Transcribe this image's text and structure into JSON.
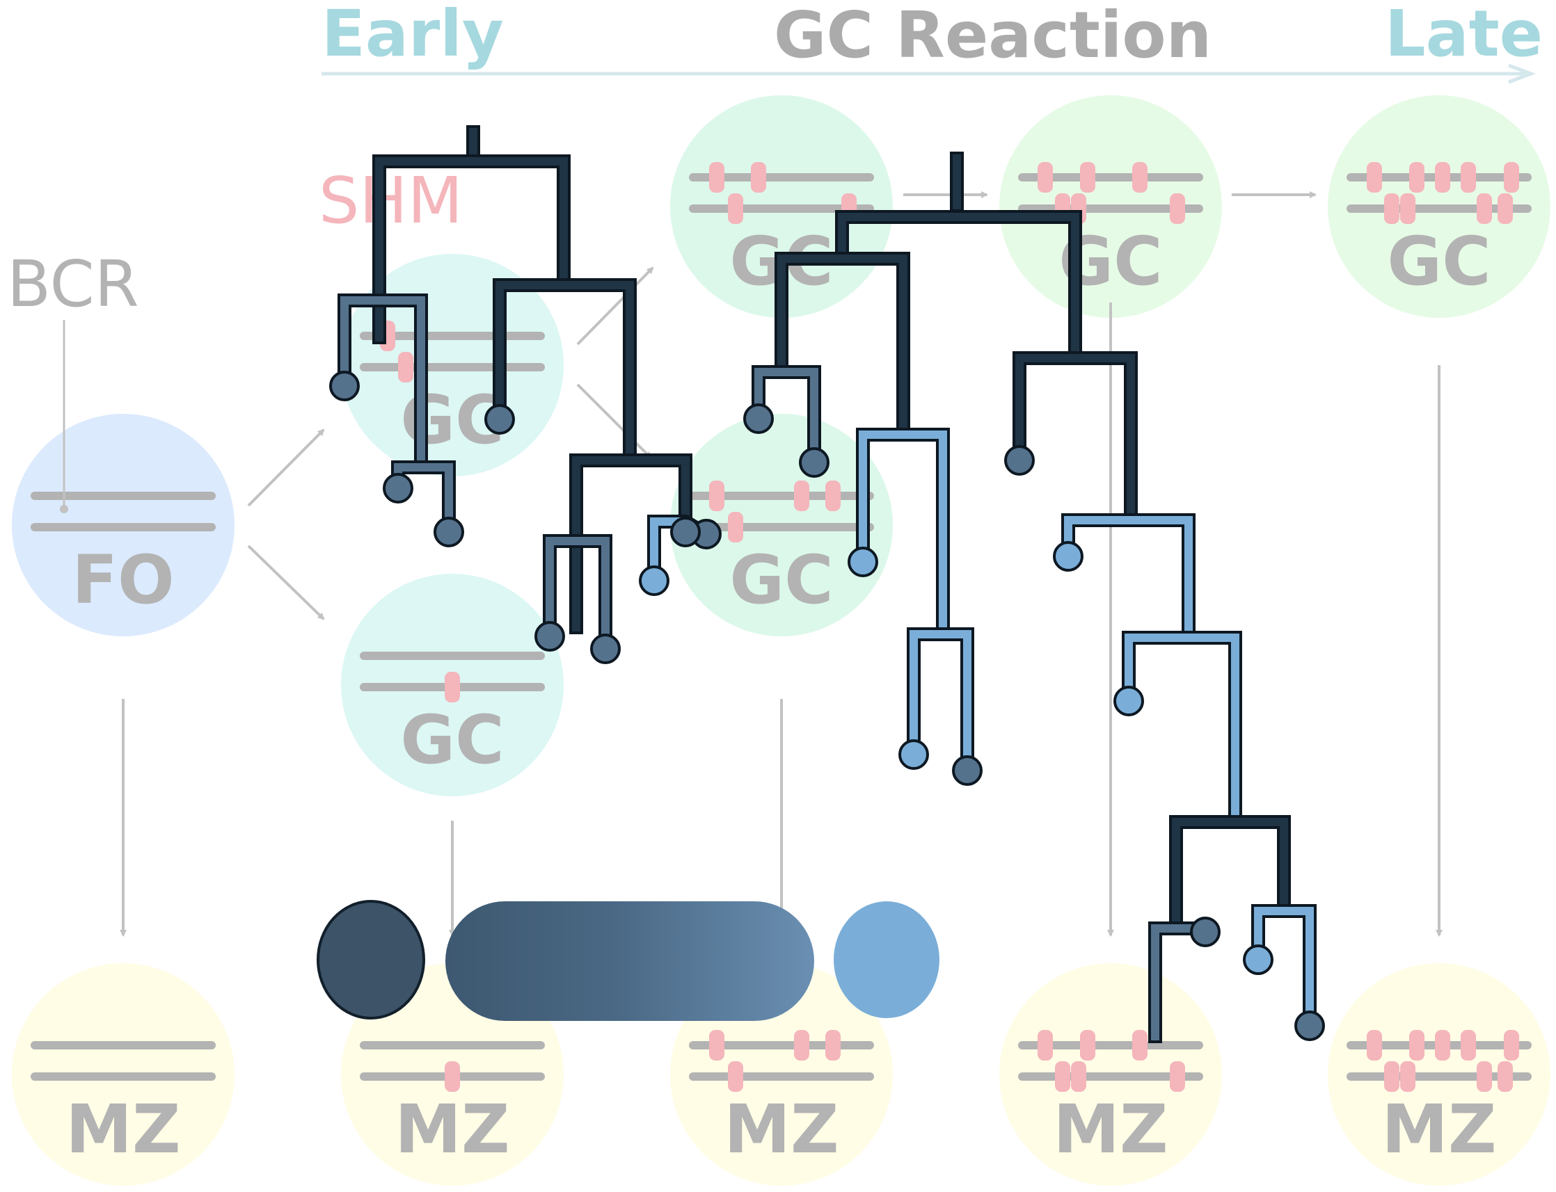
{
  "header": {
    "early": "Early",
    "title": "GC Reaction",
    "late": "Late"
  },
  "labels": {
    "shm": "SHM",
    "bcr": "BCR"
  },
  "cells": {
    "fo": "FO",
    "gc": "GC",
    "mz": "MZ"
  },
  "colors": {
    "fo_fill": "#dbeafd",
    "gc_early_fill": "#dcf7f4",
    "gc_mid_fill": "#dcf8ea",
    "gc_late_fill": "#e6fbe6",
    "mz_fill": "#fffde6",
    "chromosome": "#b3b3b3",
    "mutation": "#f4b5bb",
    "arrow": "#c2c2c2",
    "header_early_late": "#a6d8df",
    "header_title": "#ababab",
    "shm_text": "#f4b5bb",
    "tree_dark": "#1f3445",
    "tree_mid": "#55728d",
    "tree_light": "#7aaed8"
  },
  "icons": {
    "arrow": "arrow-icon",
    "mutation": "mutation-marker-icon"
  }
}
